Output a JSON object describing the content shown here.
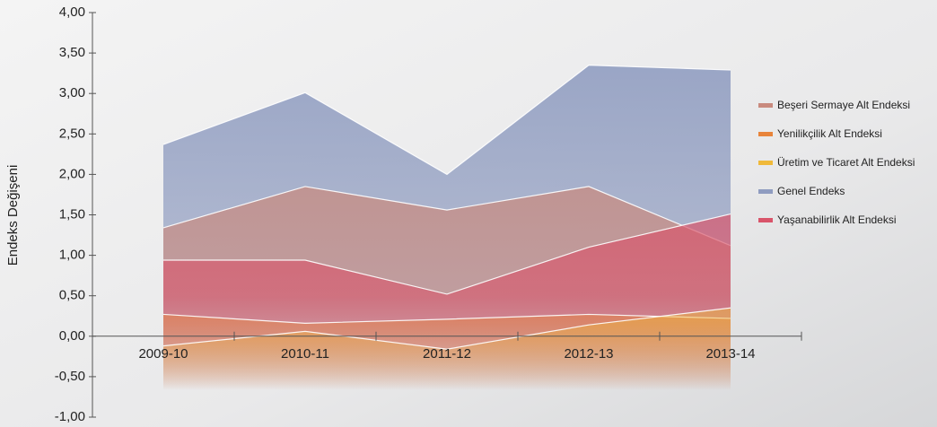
{
  "chart_data": {
    "type": "area",
    "y_label": "Endeks Değişeni",
    "categories": [
      "2009-10",
      "2010-11",
      "2011-12",
      "2012-13",
      "2013-14"
    ],
    "series": [
      {
        "name": "Beşeri Sermaye Alt Endeksi",
        "color": "#c98a7e",
        "values": [
          1.34,
          1.85,
          1.56,
          1.85,
          1.12
        ]
      },
      {
        "name": "Yenilikçilik Alt Endeksi",
        "color": "#e8843a",
        "values": [
          0.27,
          0.16,
          0.21,
          0.27,
          0.22
        ]
      },
      {
        "name": "Üretim ve Ticaret Alt Endeksi",
        "color": "#f0b93a",
        "values": [
          -0.12,
          0.06,
          -0.16,
          0.14,
          0.35
        ]
      },
      {
        "name": "Genel Endeks",
        "color": "#8f9cc0",
        "values": [
          2.37,
          3.01,
          2.0,
          3.35,
          3.29
        ]
      },
      {
        "name": "Yaşanabilirlik Alt Endeksi",
        "color": "#d9546a",
        "values": [
          0.94,
          0.94,
          0.52,
          1.1,
          1.51
        ]
      }
    ],
    "ylim": [
      -1,
      4
    ],
    "yticks": [
      {
        "value": -1,
        "label": "-1,00"
      },
      {
        "value": -0.5,
        "label": "-0,50"
      },
      {
        "value": 0,
        "label": "0,00"
      },
      {
        "value": 0.5,
        "label": "0,50"
      },
      {
        "value": 1,
        "label": "1,00"
      },
      {
        "value": 1.5,
        "label": "1,50"
      },
      {
        "value": 2,
        "label": "2,00"
      },
      {
        "value": 2.5,
        "label": "2,50"
      },
      {
        "value": 3,
        "label": "3,00"
      },
      {
        "value": 3.5,
        "label": "3,50"
      },
      {
        "value": 4,
        "label": "4,00"
      }
    ],
    "legend": "right"
  }
}
